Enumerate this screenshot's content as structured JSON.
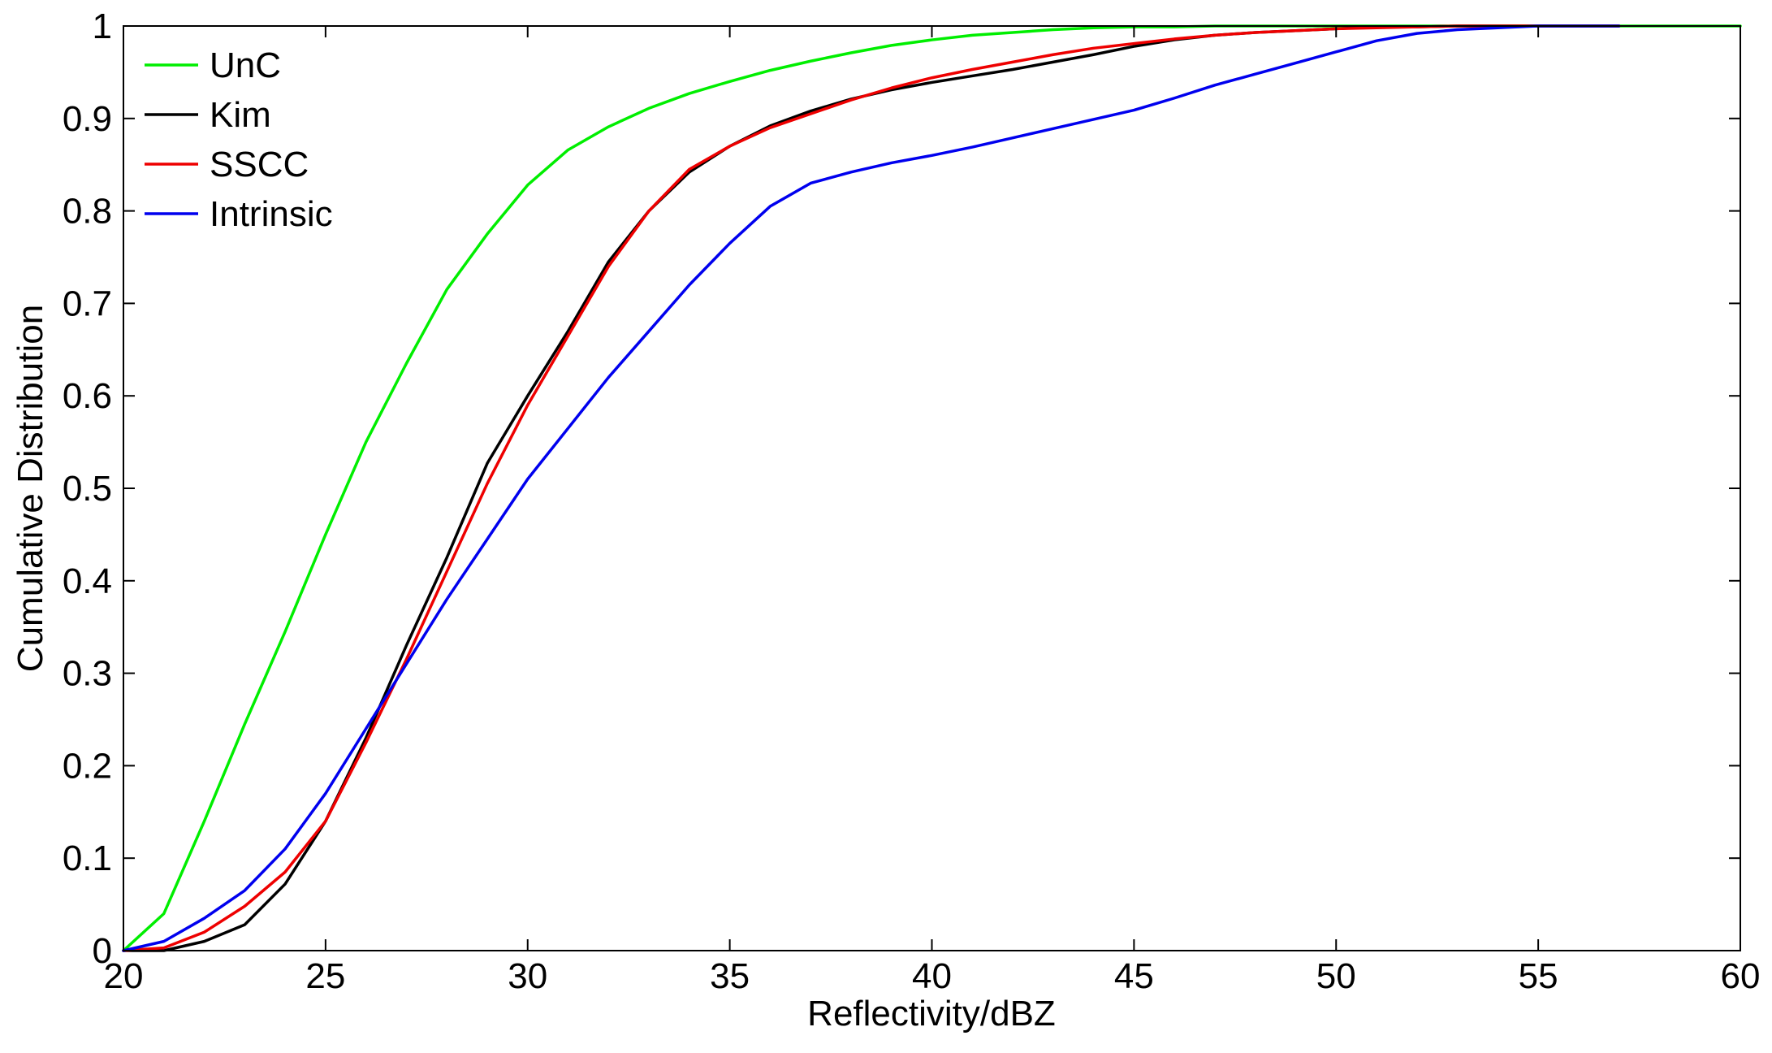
{
  "chart_data": {
    "type": "line",
    "title": "",
    "xlabel": "Reflectivity/dBZ",
    "ylabel": "Cumulative Distribution",
    "xlim": [
      20,
      60
    ],
    "ylim": [
      0,
      1
    ],
    "xticks": [
      20,
      25,
      30,
      35,
      40,
      45,
      50,
      55,
      60
    ],
    "yticks": [
      0,
      0.1,
      0.2,
      0.3,
      0.4,
      0.5,
      0.6,
      0.7,
      0.8,
      0.9,
      1
    ],
    "xtick_labels": [
      "20",
      "25",
      "30",
      "35",
      "40",
      "45",
      "50",
      "55",
      "60"
    ],
    "ytick_labels": [
      "0",
      "0.1",
      "0.2",
      "0.3",
      "0.4",
      "0.5",
      "0.6",
      "0.7",
      "0.8",
      "0.9",
      "1"
    ],
    "grid": false,
    "legend_position": "top-left",
    "series": [
      {
        "name": "UnC",
        "color": "#00ee00",
        "x": [
          20,
          21,
          22,
          23,
          24,
          25,
          26,
          27,
          28,
          29,
          30,
          31,
          32,
          33,
          34,
          35,
          36,
          37,
          38,
          39,
          40,
          41,
          42,
          43,
          44,
          45,
          46,
          47,
          48,
          49,
          50,
          51,
          52,
          53,
          54,
          55,
          56,
          57,
          60
        ],
        "y": [
          0,
          0.04,
          0.14,
          0.245,
          0.345,
          0.45,
          0.55,
          0.635,
          0.715,
          0.775,
          0.828,
          0.866,
          0.891,
          0.911,
          0.927,
          0.94,
          0.952,
          0.962,
          0.971,
          0.979,
          0.985,
          0.99,
          0.993,
          0.996,
          0.998,
          0.999,
          0.999,
          1,
          1,
          1,
          1,
          1,
          1,
          1,
          1,
          1,
          1,
          1,
          1
        ]
      },
      {
        "name": "Kim",
        "color": "#000000",
        "x": [
          20,
          21,
          22,
          23,
          24,
          25,
          26,
          27,
          28,
          29,
          30,
          31,
          32,
          33,
          34,
          35,
          36,
          37,
          38,
          39,
          40,
          41,
          42,
          43,
          44,
          45,
          46,
          47,
          48,
          49,
          50,
          51,
          52,
          53,
          54,
          55,
          56,
          57
        ],
        "y": [
          0,
          0,
          0.01,
          0.028,
          0.072,
          0.14,
          0.23,
          0.33,
          0.425,
          0.527,
          0.6,
          0.67,
          0.745,
          0.8,
          0.842,
          0.87,
          0.892,
          0.908,
          0.921,
          0.931,
          0.939,
          0.946,
          0.953,
          0.961,
          0.969,
          0.978,
          0.985,
          0.99,
          0.993,
          0.995,
          0.997,
          0.999,
          0.999,
          1,
          1,
          1,
          1,
          1
        ]
      },
      {
        "name": "SSCC",
        "color": "#ee0000",
        "x": [
          20,
          21,
          22,
          23,
          24,
          25,
          26,
          27,
          28,
          29,
          30,
          31,
          32,
          33,
          34,
          35,
          36,
          37,
          38,
          39,
          40,
          41,
          42,
          43,
          44,
          45,
          46,
          47,
          48,
          49,
          50,
          51,
          52,
          53,
          54,
          55,
          56,
          57
        ],
        "y": [
          0,
          0.003,
          0.02,
          0.048,
          0.085,
          0.14,
          0.225,
          0.315,
          0.41,
          0.505,
          0.59,
          0.665,
          0.74,
          0.8,
          0.845,
          0.87,
          0.89,
          0.905,
          0.92,
          0.933,
          0.944,
          0.953,
          0.961,
          0.969,
          0.976,
          0.981,
          0.986,
          0.99,
          0.993,
          0.995,
          0.997,
          0.998,
          0.999,
          1,
          1,
          1,
          1,
          1
        ]
      },
      {
        "name": "Intrinsic",
        "color": "#0000ee",
        "x": [
          20,
          21,
          22,
          23,
          24,
          25,
          26,
          27,
          28,
          29,
          30,
          31,
          32,
          33,
          34,
          35,
          36,
          37,
          38,
          39,
          40,
          41,
          42,
          43,
          44,
          45,
          46,
          47,
          48,
          49,
          50,
          51,
          52,
          53,
          54,
          55,
          56,
          57
        ],
        "y": [
          0,
          0.01,
          0.035,
          0.065,
          0.11,
          0.17,
          0.24,
          0.31,
          0.38,
          0.445,
          0.51,
          0.565,
          0.62,
          0.67,
          0.72,
          0.765,
          0.805,
          0.83,
          0.842,
          0.852,
          0.86,
          0.869,
          0.879,
          0.889,
          0.899,
          0.909,
          0.922,
          0.936,
          0.948,
          0.96,
          0.972,
          0.984,
          0.992,
          0.996,
          0.998,
          1,
          1,
          1
        ]
      }
    ]
  }
}
